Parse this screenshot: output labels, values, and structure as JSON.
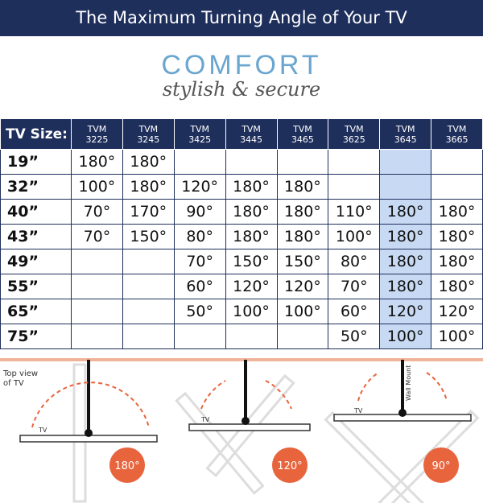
{
  "header": {
    "title": "The Maximum Turning Angle of Your TV"
  },
  "brand": {
    "name": "COMFORT",
    "tagline": "stylish & secure"
  },
  "table": {
    "size_label": "TV Size:",
    "columns": [
      {
        "prefix": "TVM",
        "model": "3225"
      },
      {
        "prefix": "TVM",
        "model": "3245"
      },
      {
        "prefix": "TVM",
        "model": "3425"
      },
      {
        "prefix": "TVM",
        "model": "3445"
      },
      {
        "prefix": "TVM",
        "model": "3465"
      },
      {
        "prefix": "TVM",
        "model": "3625"
      },
      {
        "prefix": "TVM",
        "model": "3645"
      },
      {
        "prefix": "TVM",
        "model": "3665"
      }
    ],
    "rows": [
      {
        "size": "19”",
        "cells": [
          "180°",
          "180°",
          null,
          null,
          null,
          null,
          null,
          null
        ]
      },
      {
        "size": "32”",
        "cells": [
          "100°",
          "180°",
          "120°",
          "180°",
          "180°",
          null,
          null,
          null
        ]
      },
      {
        "size": "40”",
        "cells": [
          "70°",
          "170°",
          "90°",
          "180°",
          "180°",
          "110°",
          "180°",
          "180°"
        ]
      },
      {
        "size": "43”",
        "cells": [
          "70°",
          "150°",
          "80°",
          "180°",
          "180°",
          "100°",
          "180°",
          "180°"
        ]
      },
      {
        "size": "49”",
        "cells": [
          null,
          null,
          "70°",
          "150°",
          "150°",
          "80°",
          "180°",
          "180°"
        ]
      },
      {
        "size": "55”",
        "cells": [
          null,
          null,
          "60°",
          "120°",
          "120°",
          "70°",
          "180°",
          "180°"
        ]
      },
      {
        "size": "65”",
        "cells": [
          null,
          null,
          "50°",
          "100°",
          "100°",
          "60°",
          "120°",
          "120°"
        ]
      },
      {
        "size": "75”",
        "cells": [
          null,
          null,
          null,
          null,
          null,
          "50°",
          "100°",
          "100°"
        ]
      }
    ]
  },
  "diagrams": {
    "top_view": "Top view of TV",
    "panels": [
      {
        "tv": "TV",
        "angle": "180°"
      },
      {
        "tv": "TV",
        "angle": "120°"
      },
      {
        "tv": "TV",
        "mount": "Wall Mount",
        "angle": "90°"
      }
    ]
  }
}
